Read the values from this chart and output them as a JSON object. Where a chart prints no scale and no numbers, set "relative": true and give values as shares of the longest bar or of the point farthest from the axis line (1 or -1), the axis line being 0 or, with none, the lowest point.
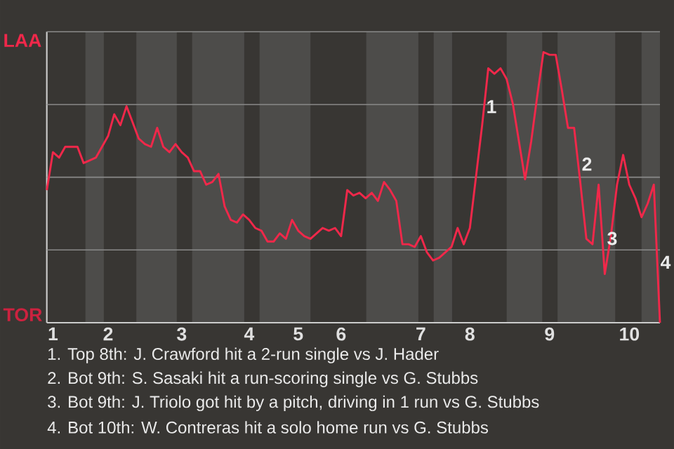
{
  "chart_data": {
    "type": "line",
    "color": "#f0284a",
    "relative": true,
    "grid": "y",
    "categories": [
      null,
      "1",
      null,
      null,
      null,
      null,
      null,
      null,
      null,
      null,
      "2",
      null,
      null,
      null,
      null,
      null,
      null,
      null,
      null,
      null,
      null,
      null,
      "3",
      null,
      null,
      null,
      null,
      null,
      null,
      null,
      null,
      null,
      null,
      "4",
      null,
      null,
      null,
      null,
      null,
      null,
      null,
      "5",
      null,
      null,
      null,
      null,
      null,
      null,
      "6",
      null,
      null,
      null,
      null,
      null,
      null,
      null,
      null,
      null,
      null,
      null,
      null,
      "7",
      null,
      null,
      null,
      null,
      null,
      null,
      null,
      "8",
      null,
      null,
      null,
      null,
      null,
      null,
      null,
      null,
      null,
      null,
      null,
      null,
      "9",
      null,
      null,
      null,
      null,
      null,
      null,
      null,
      null,
      null,
      null,
      null,
      null,
      "10",
      null,
      null,
      null,
      null,
      null
    ],
    "values": [
      0.49,
      0.63,
      0.61,
      0.65,
      0.65,
      0.65,
      0.59,
      0.6,
      0.61,
      0.65,
      0.69,
      0.77,
      0.73,
      0.8,
      0.74,
      0.68,
      0.66,
      0.65,
      0.72,
      0.65,
      0.63,
      0.66,
      0.63,
      0.61,
      0.56,
      0.56,
      0.51,
      0.52,
      0.55,
      0.43,
      0.38,
      0.37,
      0.4,
      0.38,
      0.35,
      0.34,
      0.3,
      0.3,
      0.33,
      0.31,
      0.38,
      0.34,
      0.32,
      0.31,
      0.33,
      0.35,
      0.34,
      0.35,
      0.32,
      0.49,
      0.47,
      0.48,
      0.46,
      0.48,
      0.45,
      0.52,
      0.49,
      0.45,
      0.29,
      0.29,
      0.28,
      0.32,
      0.26,
      0.23,
      0.24,
      0.26,
      0.28,
      0.35,
      0.29,
      0.35,
      0.54,
      0.73,
      0.94,
      0.92,
      0.94,
      0.9,
      0.81,
      0.67,
      0.53,
      0.67,
      0.84,
      1,
      0.99,
      0.99,
      0.86,
      0.72,
      0.72,
      0.52,
      0.31,
      0.29,
      0.51,
      0.18,
      0.32,
      0.51,
      0.62,
      0.51,
      0.46,
      0.39,
      0.44,
      0.51,
      0
    ],
    "annotations": [
      "LAA",
      "TOR",
      "1",
      "2",
      "3",
      "4",
      "1. Top 8th: J. Crawford hit a 2-run single vs J. Hader",
      "2. Bot 9th: S. Sasaki hit a run-scoring single vs G. Stubbs",
      "3. Bot 9th: J. Triolo got hit by a pitch, driving in 1 run vs G. Stubbs",
      "4. Bot 10th: W. Contreras hit a solo home run vs G. Stubbs"
    ]
  }
}
